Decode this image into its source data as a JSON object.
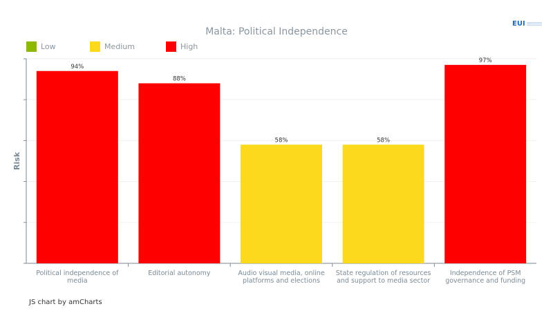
{
  "chart_data": {
    "type": "bar",
    "title": "Malta: Political Independence",
    "ylabel": "Risk",
    "xlabel": "",
    "ylim": [
      0,
      100
    ],
    "grid": true,
    "legend_placement": "top-left",
    "legend": [
      {
        "label": "Low",
        "color": "#8cb800"
      },
      {
        "label": "Medium",
        "color": "#fcd91a"
      },
      {
        "label": "High",
        "color": "#ff0000"
      }
    ],
    "categories": [
      "Political independence of media",
      "Editorial autonomy",
      "Audio visual media, online platforms and elections",
      "State regulation of resources and support to media sector",
      "Independence of PSM governance and funding"
    ],
    "values": [
      94,
      88,
      58,
      58,
      97
    ],
    "value_labels": [
      "94%",
      "88%",
      "58%",
      "58%",
      "97%"
    ],
    "colors": [
      "#ff0000",
      "#ff0000",
      "#fcd91a",
      "#fcd91a",
      "#ff0000"
    ]
  },
  "credit": "JS chart by amCharts",
  "logo": "EUI"
}
